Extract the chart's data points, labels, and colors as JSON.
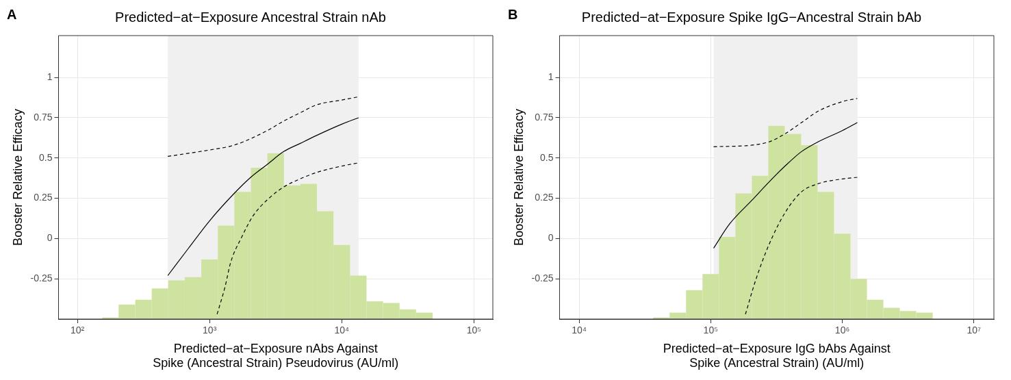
{
  "chart_data": [
    {
      "type": "histogram",
      "title": "Predicted−at−Exposure Ancestral Strain nAb",
      "xlabel": "Predicted−at−Exposure nAbs Against\nSpike (Ancestral Strain) Pseudovirus (AU/ml)",
      "ylabel": "Booster Relative Efficacy",
      "annotations": [
        "A"
      ],
      "log": "x",
      "grid": true,
      "color": "#cfe3a0",
      "xlim": [
        72,
        139000
      ],
      "xticks": [
        {
          "value": 100,
          "label": "10²"
        },
        {
          "value": 1000,
          "label": "10³"
        },
        {
          "value": 10000,
          "label": "10⁴"
        },
        {
          "value": 100000,
          "label": "10⁵"
        }
      ],
      "ylim": [
        -0.5,
        1.26
      ],
      "yticks": [
        -0.25,
        0,
        0.25,
        0.5,
        0.75,
        1
      ],
      "bands": [
        {
          "axis": "x",
          "from": 483,
          "to": 13400,
          "color": "#f0f0f0"
        }
      ],
      "bins": [
        154,
        205,
        274,
        365,
        487,
        649,
        866,
        1155,
        1540,
        2054,
        2738,
        3652,
        4870,
        6494,
        8660,
        11548,
        15399,
        20535,
        27384,
        36517,
        48697
      ],
      "base": [
        -0.5,
        -0.5,
        -0.5,
        -0.5,
        -0.5,
        -0.5,
        -0.5,
        -0.5,
        -0.5,
        -0.5,
        -0.5,
        -0.5,
        -0.5,
        -0.5,
        -0.5,
        -0.5,
        -0.5,
        -0.5,
        -0.5,
        -0.5
      ],
      "values": [
        0.01,
        0.09,
        0.12,
        0.19,
        0.24,
        0.26,
        0.37,
        0.58,
        0.79,
        0.94,
        1.03,
        0.83,
        0.84,
        0.67,
        0.46,
        0.27,
        0.11,
        0.1,
        0.06,
        0.04
      ],
      "series": [
        {
          "type": "line",
          "color": "#000000",
          "line_style": "solid",
          "x": [
            483,
            693,
            1000,
            1535,
            2047,
            2729,
            3639,
            4830,
            6442,
            10000,
            13400
          ],
          "values": [
            -0.23,
            -0.06,
            0.11,
            0.28,
            0.38,
            0.46,
            0.54,
            0.59,
            0.64,
            0.71,
            0.75
          ]
        },
        {
          "type": "line",
          "color": "#000000",
          "line_style": "dashed",
          "x": [
            483,
            1000,
            1535,
            2729,
            3639,
            4830,
            6442,
            10000,
            13400
          ],
          "values": [
            0.51,
            0.55,
            0.58,
            0.67,
            0.73,
            0.78,
            0.83,
            0.86,
            0.88
          ]
        },
        {
          "type": "line",
          "color": "#000000",
          "line_style": "dashed",
          "x": [
            1140,
            1309,
            1442,
            1753,
            2130,
            2729,
            3639,
            4830,
            6442,
            10000,
            13400
          ],
          "values": [
            -0.47,
            -0.3,
            -0.15,
            0.01,
            0.14,
            0.24,
            0.32,
            0.37,
            0.41,
            0.45,
            0.47
          ]
        }
      ]
    },
    {
      "type": "histogram",
      "title": "Predicted−at−Exposure Spike IgG−Ancestral Strain bAb",
      "xlabel": "Predicted−at−Exposure IgG bAbs Against\nSpike (Ancestral Strain) (AU/ml)",
      "ylabel": "Booster Relative Efficacy",
      "annotations": [
        "B"
      ],
      "log": "x",
      "grid": true,
      "color": "#cfe3a0",
      "xlim": [
        7100,
        14200000
      ],
      "xticks": [
        {
          "value": 10000,
          "label": "10⁴"
        },
        {
          "value": 100000,
          "label": "10⁵"
        },
        {
          "value": 1000000,
          "label": "10⁶"
        },
        {
          "value": 10000000,
          "label": "10⁷"
        }
      ],
      "ylim": [
        -0.5,
        1.26
      ],
      "yticks": [
        -0.25,
        0,
        0.25,
        0.5,
        0.75,
        1
      ],
      "bands": [
        {
          "axis": "x",
          "from": 105200,
          "to": 1306000,
          "color": "#f0f0f0"
        }
      ],
      "bins": [
        36517,
        48697,
        64938,
        86596,
        115478,
        153993,
        205353,
        273842,
        365174,
        486968,
        649382,
        865964,
        1154782,
        1539927,
        2053525,
        2738420,
        3651741,
        4869675
      ],
      "base": [
        -0.5,
        -0.5,
        -0.5,
        -0.5,
        -0.5,
        -0.5,
        -0.5,
        -0.5,
        -0.5,
        -0.5,
        -0.5,
        -0.5,
        -0.5,
        -0.5,
        -0.5,
        -0.5,
        -0.5
      ],
      "values": [
        0.01,
        0.04,
        0.18,
        0.28,
        0.51,
        0.78,
        0.89,
        1.2,
        1.15,
        1.08,
        0.79,
        0.53,
        0.25,
        0.12,
        0.07,
        0.05,
        0.04
      ],
      "series": [
        {
          "type": "line",
          "color": "#000000",
          "line_style": "solid",
          "x": [
            105200,
            139000,
            207000,
            276500,
            367000,
            490000,
            653000,
            1000000,
            1300000
          ],
          "values": [
            -0.06,
            0.09,
            0.24,
            0.35,
            0.45,
            0.54,
            0.6,
            0.67,
            0.72
          ]
        },
        {
          "type": "line",
          "color": "#000000",
          "line_style": "dashed",
          "x": [
            105200,
            207000,
            276500,
            367000,
            490000,
            653000,
            1000000,
            1300000
          ],
          "values": [
            0.57,
            0.58,
            0.6,
            0.65,
            0.72,
            0.79,
            0.85,
            0.87
          ]
        },
        {
          "type": "line",
          "color": "#000000",
          "line_style": "dashed",
          "x": [
            183600,
            219300,
            276500,
            367000,
            490000,
            653000,
            1000000,
            1300000
          ],
          "values": [
            -0.47,
            -0.26,
            -0.04,
            0.16,
            0.29,
            0.34,
            0.37,
            0.38
          ]
        }
      ]
    }
  ]
}
